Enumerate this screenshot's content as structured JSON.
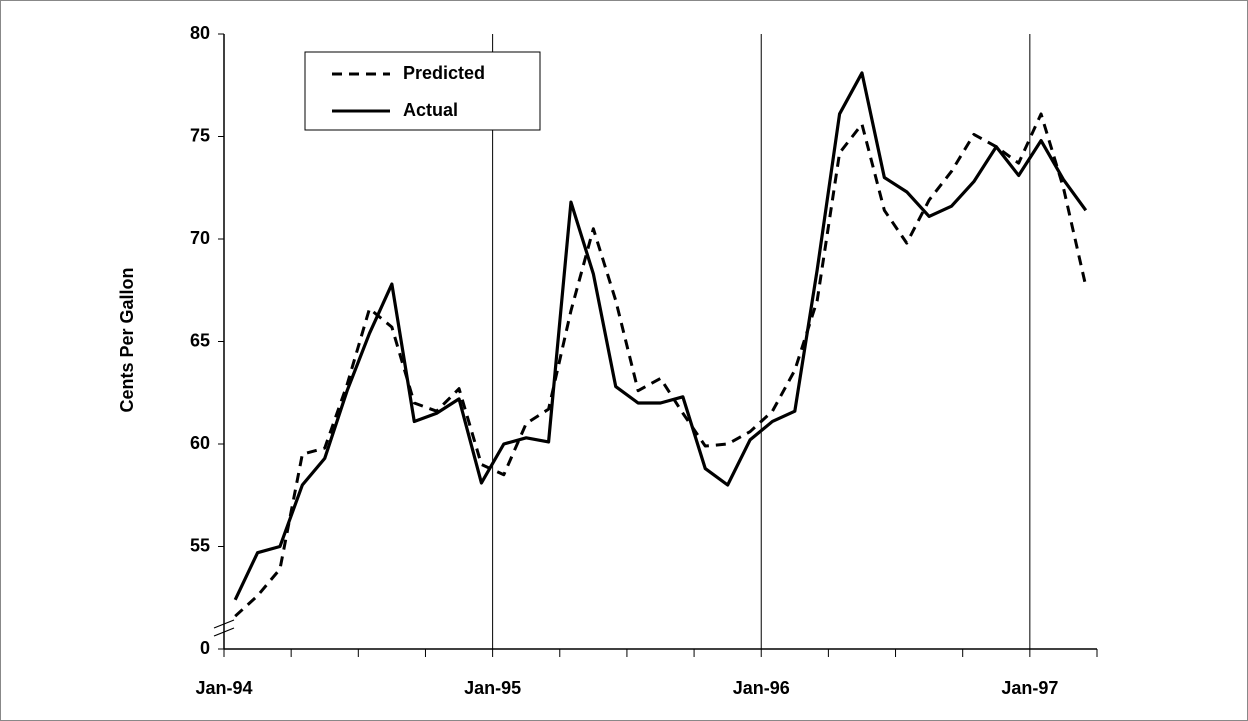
{
  "chart_data": {
    "type": "line",
    "y_label": "Cents Per Gallon",
    "categories": [
      "Jan-94",
      null,
      null,
      null,
      null,
      null,
      null,
      null,
      null,
      null,
      null,
      null,
      "Jan-95",
      null,
      null,
      null,
      null,
      null,
      null,
      null,
      null,
      null,
      null,
      null,
      "Jan-96",
      null,
      null,
      null,
      null,
      null,
      null,
      null,
      null,
      null,
      null,
      null,
      "Jan-97",
      null,
      null
    ],
    "series": [
      {
        "name": "Predicted",
        "color": "#000000",
        "style": "dashed",
        "values": [
          51.6,
          52.6,
          53.9,
          59.5,
          59.8,
          62.9,
          66.6,
          65.7,
          62.0,
          61.6,
          62.7,
          59.0,
          58.5,
          61.0,
          61.7,
          66.5,
          70.5,
          67.0,
          62.6,
          63.2,
          61.5,
          59.9,
          60.0,
          60.6,
          61.6,
          63.6,
          67.0,
          74.2,
          75.6,
          71.4,
          69.8,
          71.9,
          73.3,
          75.1,
          74.5,
          73.7,
          76.1,
          72.5,
          67.7
        ]
      },
      {
        "name": "Actual",
        "color": "#000000",
        "style": "solid",
        "values": [
          52.4,
          54.7,
          55.0,
          58.0,
          59.3,
          62.6,
          65.4,
          67.8,
          61.1,
          61.5,
          62.2,
          58.1,
          60.0,
          60.3,
          60.1,
          71.8,
          68.3,
          62.8,
          62.0,
          62.0,
          62.3,
          58.8,
          58.0,
          60.2,
          61.1,
          61.6,
          68.5,
          76.1,
          78.1,
          73.0,
          72.3,
          71.1,
          71.6,
          72.8,
          74.5,
          73.1,
          74.8,
          72.9,
          71.4
        ]
      }
    ],
    "ylim": [
      50,
      80
    ],
    "yticks": [
      {
        "value": 50,
        "label": "0"
      },
      55,
      60,
      65,
      70,
      75,
      80
    ],
    "grid": true,
    "legend": "top-left"
  }
}
